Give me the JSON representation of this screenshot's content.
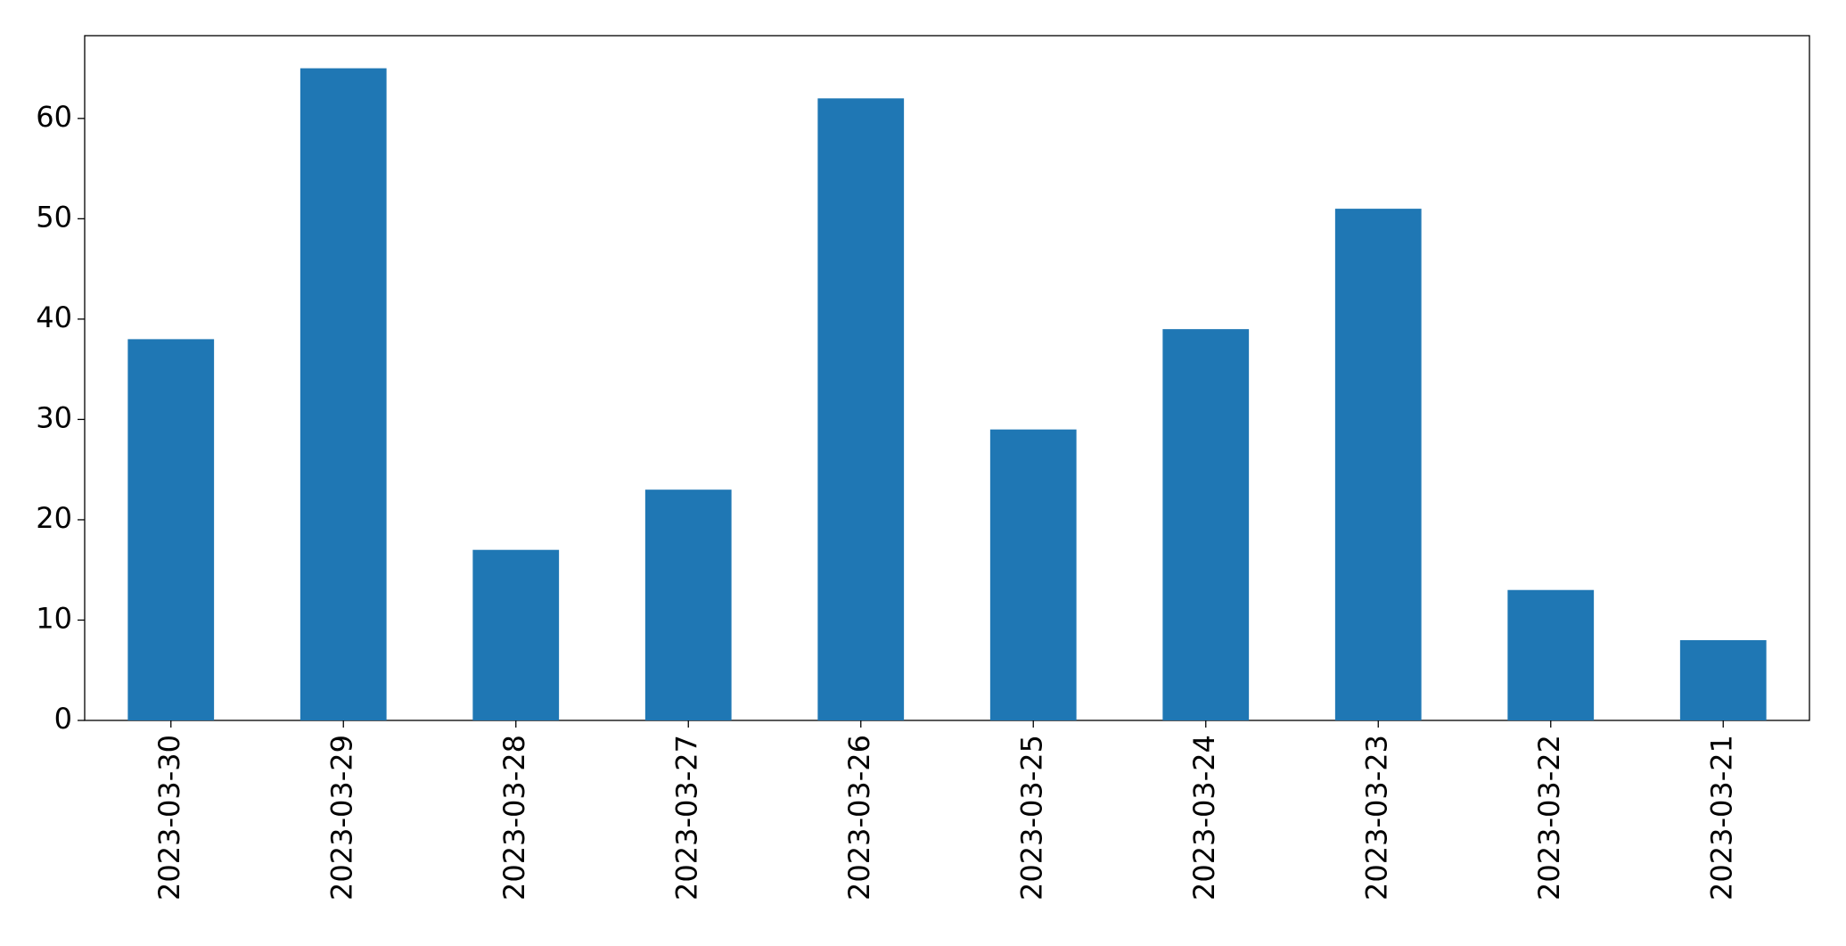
{
  "chart_data": {
    "type": "bar",
    "categories": [
      "2023-03-30",
      "2023-03-29",
      "2023-03-28",
      "2023-03-27",
      "2023-03-26",
      "2023-03-25",
      "2023-03-24",
      "2023-03-23",
      "2023-03-22",
      "2023-03-21"
    ],
    "values": [
      38,
      65,
      17,
      23,
      62,
      29,
      39,
      51,
      13,
      8
    ],
    "color": "#1f77b4",
    "ylim": [
      0,
      68.25
    ],
    "yticks": [
      0,
      10,
      20,
      30,
      40,
      50,
      60
    ],
    "grid": false
  }
}
